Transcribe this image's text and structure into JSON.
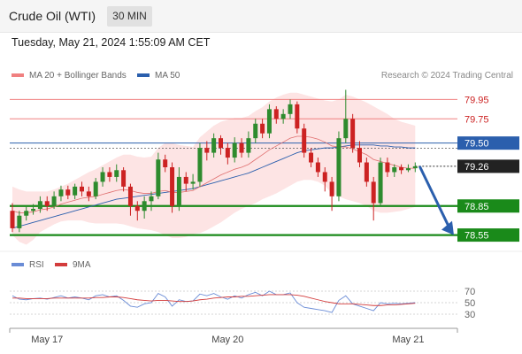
{
  "header": {
    "title": "Crude Oil (WTI)",
    "timeframe": "30 MIN"
  },
  "datetime": "Tuesday, May 21, 2024 1:55:09 AM CET",
  "legend": {
    "ma20_bb": "MA 20 + Bollinger Bands",
    "ma50": "MA 50",
    "attribution": "Research © 2024 Trading Central"
  },
  "rsi_legend": {
    "rsi": "RSI",
    "ma9": "9MA"
  },
  "colors": {
    "resistance": "#f08080",
    "pivot": "#2b5fad",
    "support": "#1a8a1a",
    "bull": "#2e8b2e",
    "bear": "#cc2222",
    "bb_fill": "#fde4e4",
    "rsi": "#6a8cd6",
    "rsi_ma": "#d33c3c",
    "arrow": "#2b5fad"
  },
  "chart_data": [
    {
      "type": "candlestick",
      "title": "",
      "ylim": [
        78.4,
        80.1
      ],
      "levels": [
        {
          "value": 79.95,
          "label": "79.95",
          "kind": "resistance"
        },
        {
          "value": 79.75,
          "label": "79.75",
          "kind": "resistance"
        },
        {
          "value": 79.5,
          "label": "79.50",
          "kind": "pivot"
        },
        {
          "value": 79.26,
          "label": "79.26",
          "kind": "last"
        },
        {
          "value": 78.85,
          "label": "78.85",
          "kind": "support"
        },
        {
          "value": 78.55,
          "label": "78.55",
          "kind": "support"
        }
      ],
      "x_ticks": [
        {
          "label": "May 17",
          "index": 5
        },
        {
          "label": "May 20",
          "index": 31
        },
        {
          "label": "May 21",
          "index": 57
        }
      ],
      "candles": [
        [
          78.8,
          78.62,
          78.88,
          78.58
        ],
        [
          78.62,
          78.75,
          78.8,
          78.58
        ],
        [
          78.75,
          78.8,
          78.85,
          78.7
        ],
        [
          78.8,
          78.82,
          78.87,
          78.76
        ],
        [
          78.82,
          78.9,
          78.95,
          78.78
        ],
        [
          78.9,
          78.85,
          78.95,
          78.8
        ],
        [
          78.85,
          78.95,
          79.0,
          78.82
        ],
        [
          78.95,
          79.02,
          79.06,
          78.9
        ],
        [
          79.02,
          78.96,
          79.06,
          78.92
        ],
        [
          78.96,
          79.05,
          79.08,
          78.92
        ],
        [
          79.05,
          79.0,
          79.1,
          78.95
        ],
        [
          79.0,
          78.95,
          79.05,
          78.9
        ],
        [
          78.95,
          79.1,
          79.14,
          78.92
        ],
        [
          79.1,
          79.2,
          79.25,
          79.05
        ],
        [
          79.2,
          79.15,
          79.25,
          79.1
        ],
        [
          79.15,
          79.22,
          79.28,
          79.1
        ],
        [
          79.22,
          79.05,
          79.25,
          79.0
        ],
        [
          79.05,
          78.85,
          79.08,
          78.75
        ],
        [
          78.85,
          78.8,
          78.9,
          78.7
        ],
        [
          78.8,
          78.9,
          78.95,
          78.72
        ],
        [
          78.9,
          78.95,
          79.0,
          78.8
        ],
        [
          78.95,
          79.33,
          79.4,
          78.92
        ],
        [
          79.33,
          79.25,
          79.38,
          79.2
        ],
        [
          79.25,
          78.85,
          79.3,
          78.78
        ],
        [
          78.85,
          79.15,
          79.25,
          78.8
        ],
        [
          79.15,
          79.08,
          79.2,
          79.0
        ],
        [
          79.08,
          79.1,
          79.18,
          79.02
        ],
        [
          79.1,
          79.45,
          79.5,
          79.05
        ],
        [
          79.45,
          79.4,
          79.52,
          79.32
        ],
        [
          79.4,
          79.55,
          79.6,
          79.35
        ],
        [
          79.55,
          79.45,
          79.58,
          79.38
        ],
        [
          79.45,
          79.35,
          79.5,
          79.28
        ],
        [
          79.35,
          79.5,
          79.56,
          79.3
        ],
        [
          79.5,
          79.4,
          79.55,
          79.35
        ],
        [
          79.4,
          79.55,
          79.62,
          79.35
        ],
        [
          79.55,
          79.7,
          79.75,
          79.5
        ],
        [
          79.7,
          79.6,
          79.75,
          79.55
        ],
        [
          79.6,
          79.85,
          79.9,
          79.55
        ],
        [
          79.85,
          79.75,
          79.88,
          79.7
        ],
        [
          79.75,
          79.8,
          79.85,
          79.7
        ],
        [
          79.8,
          79.9,
          79.95,
          79.75
        ],
        [
          79.9,
          79.65,
          79.93,
          79.6
        ],
        [
          79.65,
          79.4,
          79.7,
          79.35
        ],
        [
          79.4,
          79.3,
          79.45,
          79.25
        ],
        [
          79.3,
          79.2,
          79.35,
          79.15
        ],
        [
          79.2,
          79.1,
          79.25,
          79.0
        ],
        [
          79.1,
          78.95,
          79.15,
          78.8
        ],
        [
          78.95,
          79.55,
          79.62,
          78.9
        ],
        [
          79.55,
          79.75,
          80.05,
          79.5
        ],
        [
          79.75,
          79.45,
          79.8,
          79.4
        ],
        [
          79.45,
          79.3,
          79.52,
          79.25
        ],
        [
          79.3,
          79.1,
          79.35,
          79.05
        ],
        [
          79.1,
          78.88,
          79.15,
          78.7
        ],
        [
          78.88,
          79.3,
          79.35,
          78.85
        ],
        [
          79.3,
          79.2,
          79.35,
          79.15
        ],
        [
          79.2,
          79.25,
          79.28,
          79.15
        ],
        [
          79.25,
          79.22,
          79.28,
          79.18
        ],
        [
          79.22,
          79.24,
          79.28,
          79.2
        ],
        [
          79.24,
          79.26,
          79.3,
          79.2
        ]
      ],
      "ma20": [
        78.8,
        78.78,
        78.78,
        78.79,
        78.81,
        78.82,
        78.84,
        78.87,
        78.89,
        78.91,
        78.93,
        78.94,
        78.95,
        78.97,
        78.99,
        79.01,
        79.02,
        79.01,
        78.99,
        78.98,
        78.98,
        79.0,
        79.01,
        78.99,
        78.99,
        79.0,
        79.01,
        79.05,
        79.09,
        79.13,
        79.17,
        79.2,
        79.23,
        79.25,
        79.28,
        79.33,
        79.38,
        79.43,
        79.47,
        79.51,
        79.55,
        79.57,
        79.57,
        79.56,
        79.54,
        79.51,
        79.47,
        79.46,
        79.46,
        79.44,
        79.41,
        79.38,
        79.33,
        79.31,
        79.29,
        79.27,
        79.25,
        79.24,
        79.24
      ],
      "bb_upper": [
        79.05,
        79.02,
        79.0,
        79.0,
        79.0,
        79.0,
        79.02,
        79.05,
        79.08,
        79.12,
        79.16,
        79.2,
        79.23,
        79.27,
        79.31,
        79.35,
        79.38,
        79.38,
        79.36,
        79.35,
        79.36,
        79.45,
        79.5,
        79.5,
        79.48,
        79.47,
        79.46,
        79.56,
        79.62,
        79.68,
        79.72,
        79.74,
        79.76,
        79.76,
        79.78,
        79.83,
        79.87,
        79.93,
        79.97,
        80.0,
        80.02,
        80.02,
        80.0,
        79.98,
        79.96,
        79.94,
        79.93,
        79.95,
        80.0,
        79.98,
        79.95,
        79.92,
        79.88,
        79.84,
        79.8,
        79.75,
        79.72,
        79.7,
        79.68
      ],
      "bb_lower": [
        78.55,
        78.48,
        78.45,
        78.5,
        78.58,
        78.62,
        78.66,
        78.69,
        78.7,
        78.7,
        78.7,
        78.68,
        78.67,
        78.67,
        78.67,
        78.67,
        78.66,
        78.64,
        78.62,
        78.61,
        78.6,
        78.58,
        78.55,
        78.52,
        78.52,
        78.53,
        78.56,
        78.57,
        78.6,
        78.64,
        78.68,
        78.73,
        78.78,
        78.82,
        78.85,
        78.88,
        78.92,
        78.95,
        78.98,
        79.02,
        79.06,
        79.1,
        79.12,
        79.12,
        79.1,
        79.06,
        78.98,
        78.95,
        78.92,
        78.9,
        78.88,
        78.85,
        78.8,
        78.78,
        78.78,
        78.79,
        78.8,
        78.82,
        78.84
      ],
      "ma50": [
        78.62,
        78.64,
        78.66,
        78.68,
        78.7,
        78.72,
        78.74,
        78.76,
        78.78,
        78.8,
        78.82,
        78.84,
        78.86,
        78.88,
        78.9,
        78.92,
        78.93,
        78.94,
        78.95,
        78.96,
        78.97,
        78.98,
        78.99,
        79.0,
        79.01,
        79.02,
        79.03,
        79.05,
        79.07,
        79.09,
        79.11,
        79.13,
        79.15,
        79.17,
        79.19,
        79.22,
        79.25,
        79.28,
        79.31,
        79.34,
        79.37,
        79.4,
        79.42,
        79.43,
        79.44,
        79.45,
        79.45,
        79.46,
        79.47,
        79.48,
        79.48,
        79.48,
        79.48,
        79.47,
        79.47,
        79.46,
        79.46,
        79.45,
        79.45
      ],
      "projection": [
        79.26,
        78.55
      ]
    },
    {
      "type": "line",
      "title": "",
      "ylim": [
        10,
        90
      ],
      "y_ticks": [
        70,
        50,
        30
      ],
      "series": [
        {
          "name": "RSI",
          "values": [
            62,
            56,
            55,
            57,
            58,
            56,
            59,
            62,
            58,
            60,
            58,
            55,
            62,
            64,
            60,
            62,
            54,
            44,
            42,
            48,
            50,
            66,
            60,
            44,
            55,
            52,
            53,
            65,
            62,
            66,
            60,
            56,
            62,
            58,
            64,
            68,
            62,
            70,
            64,
            64,
            67,
            50,
            42,
            40,
            38,
            36,
            33,
            54,
            62,
            48,
            44,
            40,
            36,
            50,
            48,
            49,
            48,
            49,
            50
          ]
        },
        {
          "name": "9MA",
          "values": [
            58,
            58,
            57,
            57,
            57,
            57,
            58,
            58,
            58,
            58,
            58,
            58,
            59,
            59,
            60,
            60,
            59,
            57,
            55,
            54,
            53,
            54,
            54,
            53,
            52,
            52,
            53,
            55,
            56,
            58,
            59,
            60,
            60,
            61,
            61,
            62,
            63,
            64,
            64,
            64,
            64,
            63,
            61,
            58,
            55,
            52,
            50,
            48,
            48,
            48,
            47,
            46,
            45,
            45,
            46,
            46,
            47,
            48,
            49
          ]
        }
      ]
    }
  ]
}
